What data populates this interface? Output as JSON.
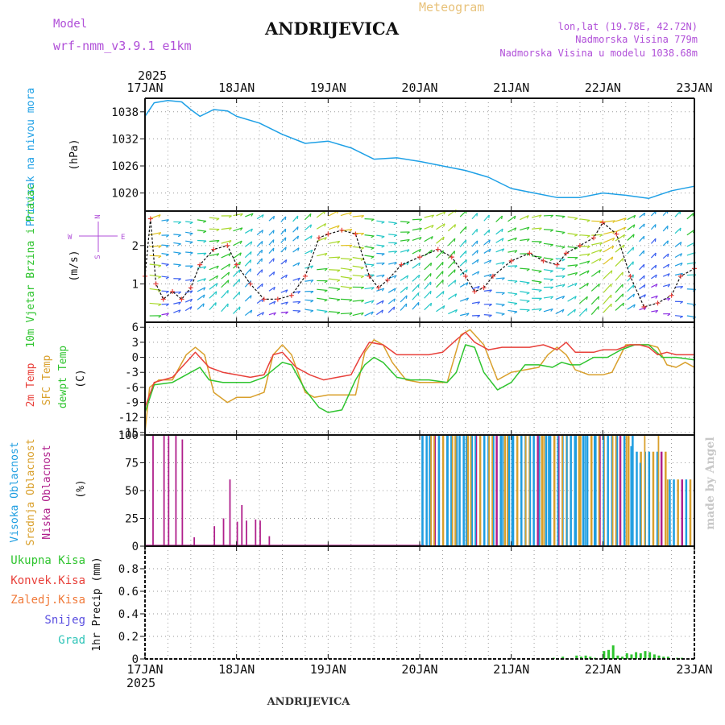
{
  "header": {
    "model_label": "Model",
    "model_name": "wrf-nmm_v3.9.1 e1km",
    "station": "ANDRIJEVICA",
    "product": "Meteogram",
    "lonlat": "lon,lat (19.78E, 42.72N)",
    "elevation": "Nadmorska Visina 779m",
    "model_elevation": "Nadmorska Visina u modelu 1038.68m",
    "footer_station": "ANDRIJEVICA",
    "credit": "made by Angel"
  },
  "time_axis": {
    "year": "2025",
    "labels": [
      "17JAN",
      "18JAN",
      "19JAN",
      "20JAN",
      "21JAN",
      "22JAN",
      "23JAN"
    ]
  },
  "colors": {
    "pressure": "#1ea0e6",
    "temp2m": "#e8403a",
    "sfc": "#d9a02c",
    "dewpt": "#2ec42e",
    "high_cloud": "#1e9de0",
    "mid_cloud": "#d9a02c",
    "low_cloud": "#b0208c",
    "purple": "#b04fd8",
    "precip": "#2ec42e"
  },
  "chart_data": [
    {
      "type": "line",
      "panel": "pressure",
      "title": "Pritisak na nivou mora",
      "ylabel": "(hPa)",
      "ylim": [
        1016,
        1041
      ],
      "yticks": [
        1020,
        1026,
        1032,
        1038
      ],
      "grid": true,
      "series": [
        {
          "name": "Pritisak na nivou mora",
          "x_days": [
            0,
            0.1,
            0.25,
            0.4,
            0.5,
            0.6,
            0.75,
            0.9,
            1.0,
            1.25,
            1.5,
            1.75,
            2.0,
            2.25,
            2.5,
            2.75,
            3.0,
            3.25,
            3.5,
            3.75,
            4.0,
            4.25,
            4.5,
            4.75,
            5.0,
            5.25,
            5.5,
            5.75,
            6.0
          ],
          "values": [
            1037,
            1040,
            1040.5,
            1040.2,
            1038.5,
            1037,
            1038.5,
            1038.2,
            1037,
            1035.5,
            1033,
            1031,
            1031.5,
            1030,
            1027.5,
            1027.8,
            1027,
            1026,
            1025,
            1023.5,
            1021,
            1020,
            1019,
            1019,
            1020,
            1019.5,
            1018.8,
            1020.5,
            1021.5
          ]
        }
      ]
    },
    {
      "type": "line",
      "panel": "wind",
      "title": "10m Vjetar Brzina i Pravac",
      "ylabel": "(m/s)",
      "ylim": [
        0,
        2.9
      ],
      "yticks": [
        1,
        2
      ],
      "compass": [
        "N",
        "S",
        "E",
        "W"
      ],
      "series": [
        {
          "name": "10m Vjetar Brzina",
          "x_days": [
            0,
            0.06,
            0.12,
            0.2,
            0.3,
            0.4,
            0.5,
            0.6,
            0.75,
            0.9,
            1.0,
            1.15,
            1.3,
            1.45,
            1.6,
            1.75,
            1.9,
            2.0,
            2.15,
            2.3,
            2.45,
            2.55,
            2.65,
            2.8,
            3.0,
            3.2,
            3.35,
            3.5,
            3.6,
            3.7,
            3.8,
            4.0,
            4.2,
            4.35,
            4.5,
            4.6,
            4.75,
            4.9,
            5.0,
            5.15,
            5.3,
            5.45,
            5.6,
            5.75,
            5.85,
            6.0
          ],
          "values": [
            1.2,
            2.7,
            1.0,
            0.6,
            0.8,
            0.6,
            0.9,
            1.5,
            1.9,
            2.0,
            1.5,
            1.0,
            0.6,
            0.6,
            0.7,
            1.2,
            2.2,
            2.3,
            2.4,
            2.3,
            1.2,
            0.9,
            1.1,
            1.5,
            1.7,
            1.9,
            1.7,
            1.2,
            0.8,
            0.9,
            1.2,
            1.6,
            1.8,
            1.6,
            1.5,
            1.8,
            2.0,
            2.2,
            2.6,
            2.3,
            1.2,
            0.4,
            0.5,
            0.7,
            1.2,
            1.4
          ]
        }
      ]
    },
    {
      "type": "line",
      "panel": "temperature",
      "title": "2m Temp / SFC Temp / dewpt Temp",
      "ylabel": "(C)",
      "ylim": [
        -15.5,
        7
      ],
      "yticks": [
        6,
        3,
        0,
        -3,
        -6,
        -9,
        -12,
        -15
      ],
      "grid": true,
      "series": [
        {
          "name": "2m Temp",
          "x_days": [
            0,
            0.1,
            0.3,
            0.45,
            0.55,
            0.7,
            0.85,
            1.0,
            1.15,
            1.3,
            1.4,
            1.5,
            1.65,
            1.8,
            1.95,
            2.1,
            2.25,
            2.35,
            2.45,
            2.6,
            2.75,
            2.9,
            3.1,
            3.25,
            3.4,
            3.5,
            3.6,
            3.75,
            3.9,
            4.05,
            4.2,
            4.35,
            4.5,
            4.6,
            4.7,
            4.8,
            4.9,
            5.0,
            5.15,
            5.3,
            5.4,
            5.5,
            5.6,
            5.7,
            5.8,
            6.0
          ],
          "values": [
            -10,
            -5,
            -4,
            -1,
            1,
            -2,
            -3,
            -3.5,
            -4,
            -3.5,
            0.5,
            1,
            -2,
            -3.5,
            -4.5,
            -4,
            -3.5,
            0,
            3,
            2.5,
            0.5,
            0.5,
            0.5,
            1,
            3.5,
            5,
            3,
            1.5,
            2,
            2,
            2,
            2.5,
            1.5,
            3,
            1,
            1,
            1,
            1.5,
            1.5,
            2.5,
            2.5,
            2,
            0.5,
            1,
            0.5,
            0.5
          ]
        },
        {
          "name": "SFC Temp",
          "x_days": [
            0,
            0.05,
            0.15,
            0.3,
            0.45,
            0.55,
            0.65,
            0.75,
            0.9,
            1.0,
            1.15,
            1.3,
            1.4,
            1.5,
            1.6,
            1.75,
            1.85,
            2.0,
            2.15,
            2.3,
            2.4,
            2.5,
            2.6,
            2.7,
            2.85,
            3.0,
            3.15,
            3.3,
            3.45,
            3.55,
            3.7,
            3.85,
            4.0,
            4.15,
            4.3,
            4.4,
            4.5,
            4.6,
            4.7,
            4.85,
            5.0,
            5.1,
            5.25,
            5.35,
            5.5,
            5.6,
            5.7,
            5.8,
            5.9,
            6.0
          ],
          "values": [
            -15,
            -6,
            -4.5,
            -4.5,
            0.5,
            2,
            0.5,
            -7,
            -9,
            -8,
            -8,
            -7,
            0.5,
            2.5,
            0.5,
            -7,
            -8,
            -7.5,
            -7.5,
            -7.5,
            1,
            3.5,
            2.5,
            -1,
            -4.5,
            -5,
            -5,
            -5,
            4.5,
            5.5,
            2.5,
            -4.5,
            -3,
            -2.5,
            -2,
            0.5,
            2,
            0.5,
            -2.5,
            -3.5,
            -3.5,
            -3,
            2.5,
            2.5,
            2.5,
            2,
            -1.5,
            -2,
            -1,
            -2
          ]
        },
        {
          "name": "dewpt Temp",
          "x_days": [
            0,
            0.1,
            0.3,
            0.5,
            0.6,
            0.7,
            0.85,
            1.0,
            1.15,
            1.3,
            1.4,
            1.5,
            1.6,
            1.75,
            1.9,
            2.0,
            2.15,
            2.3,
            2.4,
            2.5,
            2.6,
            2.75,
            2.9,
            3.1,
            3.3,
            3.4,
            3.5,
            3.6,
            3.7,
            3.85,
            4.0,
            4.15,
            4.3,
            4.45,
            4.55,
            4.65,
            4.75,
            4.9,
            5.05,
            5.2,
            5.35,
            5.5,
            5.65,
            5.8,
            6.0
          ],
          "values": [
            -11,
            -5.5,
            -5,
            -3,
            -2,
            -4.5,
            -5,
            -5,
            -5,
            -4,
            -2.5,
            -1,
            -1.5,
            -6.5,
            -10,
            -11,
            -10.5,
            -4.5,
            -1.5,
            0,
            -1,
            -4,
            -4.5,
            -4.5,
            -5,
            -3,
            2.5,
            2,
            -3,
            -6.5,
            -5,
            -1.5,
            -1.5,
            -2,
            -1,
            -1.5,
            -1.5,
            0,
            0,
            1.5,
            2.5,
            2.5,
            0,
            0,
            -0.5
          ]
        }
      ]
    },
    {
      "type": "bar",
      "panel": "cloud",
      "title": "Visoka Oblacnost / Srednja Oblacnost / Niska Oblacnost",
      "ylabel": "(%)",
      "ylim": [
        0,
        100
      ],
      "yticks": [
        0,
        25,
        50,
        75,
        100
      ],
      "grid": true,
      "series": [
        {
          "name": "Niska Oblacnost",
          "x_days": [
            0.08,
            0.2,
            0.25,
            0.33,
            0.4,
            0.53,
            0.75,
            0.85,
            0.92,
            1.0,
            1.05,
            1.1,
            1.2,
            1.25,
            1.35
          ],
          "values": [
            100,
            100,
            100,
            100,
            96,
            8,
            18,
            25,
            60,
            22,
            37,
            23,
            24,
            23,
            9
          ]
        },
        {
          "name": "Visoka Oblacnost",
          "x_days": [
            3.02,
            3.1,
            3.2,
            3.3,
            3.4,
            3.5,
            3.6,
            3.7,
            3.8,
            3.9,
            4.0,
            4.1,
            4.2,
            4.3,
            4.4,
            4.5,
            4.6,
            4.7,
            4.8,
            4.9,
            5.0,
            5.15,
            5.3,
            5.4,
            5.6
          ],
          "values": [
            100,
            100,
            100,
            100,
            100,
            100,
            100,
            100,
            100,
            100,
            100,
            100,
            100,
            100,
            100,
            100,
            100,
            100,
            100,
            100,
            100,
            100,
            90,
            75,
            40
          ]
        },
        {
          "name": "Srednja Oblacnost",
          "x_days": [
            3.15,
            3.35,
            3.55,
            3.75,
            3.95,
            4.15,
            4.35,
            4.55,
            4.75,
            4.95,
            5.1,
            5.25,
            5.45,
            5.6,
            5.7
          ],
          "values": [
            100,
            100,
            100,
            100,
            100,
            100,
            100,
            100,
            100,
            100,
            100,
            100,
            100,
            100,
            60
          ]
        }
      ]
    },
    {
      "type": "bar",
      "panel": "precip",
      "title": "Ukupna Kisa / Konvek.Kisa / Zaledj.Kisa / Snijeg / Grad",
      "ylabel": "1hr Precip (mm)",
      "ylim": [
        0,
        1.0
      ],
      "yticks": [
        0,
        0.2,
        0.4,
        0.6,
        0.8
      ],
      "grid": true,
      "legend": [
        "Ukupna Kisa",
        "Konvek.Kisa",
        "Zaledj.Kisa",
        "Snijeg",
        "Grad"
      ],
      "series": [
        {
          "name": "Ukupna Kisa",
          "x_days": [
            4.45,
            4.55,
            4.7,
            4.75,
            4.8,
            4.85,
            4.9,
            5.0,
            5.05,
            5.1,
            5.15,
            5.2,
            5.25,
            5.3,
            5.35,
            5.4,
            5.45,
            5.5,
            5.55,
            5.6,
            5.65,
            5.7,
            5.8,
            5.85
          ],
          "values": [
            0.01,
            0.02,
            0.03,
            0.02,
            0.03,
            0.02,
            0.01,
            0.07,
            0.08,
            0.12,
            0.03,
            0.02,
            0.05,
            0.04,
            0.06,
            0.05,
            0.07,
            0.06,
            0.04,
            0.03,
            0.02,
            0.02,
            0.01,
            0.01
          ]
        }
      ]
    }
  ]
}
